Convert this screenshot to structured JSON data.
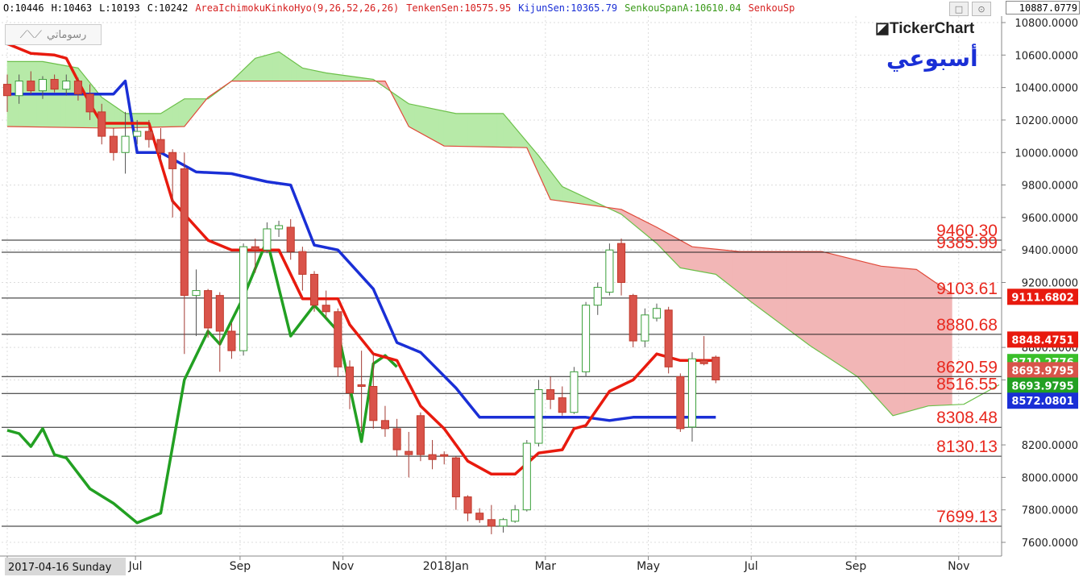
{
  "header": {
    "ohlc": [
      {
        "text": "O:10446",
        "color": "#000000"
      },
      {
        "text": "H:10463",
        "color": "#000000"
      },
      {
        "text": "L:10193",
        "color": "#000000"
      },
      {
        "text": "C:10242",
        "color": "#000000"
      },
      {
        "text": "AreaIchimokuKinkoHyo(9,26,52,26,26)",
        "color": "#d62020"
      },
      {
        "text": "TenkenSen:10575.95",
        "color": "#d62020"
      },
      {
        "text": "KijunSen:10365.79",
        "color": "#1a2fd6"
      },
      {
        "text": "SenkouSpanA:10610.04",
        "color": "#3a9a1a"
      },
      {
        "text": "SenkouSp",
        "color": "#d62020"
      }
    ],
    "last_price": "10887.0779",
    "window_buttons": [
      "□",
      "⊙"
    ]
  },
  "toolbar": {
    "drawings_label": "رسوماتي",
    "drawings_icon": "trend-line-icon"
  },
  "branding": {
    "logo_text": "◪TickerChart",
    "period_label": "أسبوعي"
  },
  "colors": {
    "up_candle": "#ffffff",
    "down_candle": "#d9534a",
    "tenkan": "#e81a0e",
    "kijun": "#1a2fd6",
    "chikou": "#22a022",
    "cloud_bull": "#b7eaa8",
    "cloud_bear": "#f2b6b6",
    "span_a": "#6cc04a",
    "span_b": "#e04a3a"
  },
  "chart_data": {
    "type": "candlestick",
    "title": "",
    "ylim": [
      7550,
      10850
    ],
    "x_range": [
      "2017-04-16",
      "2018-11-25"
    ],
    "x_ticks": [
      {
        "label": "2017-04-16 Sunday",
        "date": "2017-04-16"
      },
      {
        "label": "Jul",
        "date": "2017-07-01"
      },
      {
        "label": "Sep",
        "date": "2017-09-01"
      },
      {
        "label": "Nov",
        "date": "2017-11-01"
      },
      {
        "label": "2018Jan",
        "date": "2018-01-01"
      },
      {
        "label": "Mar",
        "date": "2018-03-01"
      },
      {
        "label": "May",
        "date": "2018-05-01"
      },
      {
        "label": "Jul",
        "date": "2018-07-01"
      },
      {
        "label": "Sep",
        "date": "2018-09-01"
      },
      {
        "label": "Nov",
        "date": "2018-11-01"
      }
    ],
    "y_ticks": [
      "10800.0000",
      "10600.0000",
      "10400.0000",
      "10200.0000",
      "10000.0000",
      "9800.0000",
      "9600.0000",
      "9400.0000",
      "9200.0000",
      "8800.0000",
      "8600.0000",
      "8200.0000",
      "8000.0000",
      "7800.0000",
      "7600.0000"
    ],
    "candles": [
      {
        "date": "2017-04-16",
        "o": 10420,
        "h": 10480,
        "l": 10250,
        "c": 10350
      },
      {
        "date": "2017-04-23",
        "o": 10350,
        "h": 10480,
        "l": 10300,
        "c": 10440
      },
      {
        "date": "2017-04-30",
        "o": 10440,
        "h": 10500,
        "l": 10360,
        "c": 10380
      },
      {
        "date": "2017-05-07",
        "o": 10380,
        "h": 10470,
        "l": 10330,
        "c": 10450
      },
      {
        "date": "2017-05-14",
        "o": 10450,
        "h": 10480,
        "l": 10370,
        "c": 10390
      },
      {
        "date": "2017-05-21",
        "o": 10390,
        "h": 10480,
        "l": 10350,
        "c": 10440
      },
      {
        "date": "2017-05-28",
        "o": 10440,
        "h": 10460,
        "l": 10320,
        "c": 10360
      },
      {
        "date": "2017-06-04",
        "o": 10360,
        "h": 10420,
        "l": 10200,
        "c": 10250
      },
      {
        "date": "2017-06-11",
        "o": 10250,
        "h": 10300,
        "l": 10050,
        "c": 10100
      },
      {
        "date": "2017-06-18",
        "o": 10100,
        "h": 10150,
        "l": 9950,
        "c": 10000
      },
      {
        "date": "2017-06-25",
        "o": 10000,
        "h": 10250,
        "l": 9870,
        "c": 10100
      },
      {
        "date": "2017-07-02",
        "o": 10100,
        "h": 10200,
        "l": 10050,
        "c": 10130
      },
      {
        "date": "2017-07-09",
        "o": 10130,
        "h": 10200,
        "l": 10030,
        "c": 10080
      },
      {
        "date": "2017-07-16",
        "o": 10080,
        "h": 10150,
        "l": 9950,
        "c": 10000
      },
      {
        "date": "2017-07-23",
        "o": 10000,
        "h": 10020,
        "l": 9600,
        "c": 9900
      },
      {
        "date": "2017-07-30",
        "o": 9900,
        "h": 10000,
        "l": 8760,
        "c": 9120
      },
      {
        "date": "2017-08-06",
        "o": 9120,
        "h": 9280,
        "l": 8870,
        "c": 9150
      },
      {
        "date": "2017-08-13",
        "o": 9150,
        "h": 9160,
        "l": 8860,
        "c": 8920
      },
      {
        "date": "2017-08-20",
        "o": 9120,
        "h": 9140,
        "l": 8650,
        "c": 8900
      },
      {
        "date": "2017-08-27",
        "o": 8900,
        "h": 8950,
        "l": 8730,
        "c": 8780
      },
      {
        "date": "2017-09-03",
        "o": 8780,
        "h": 9440,
        "l": 8750,
        "c": 9420
      },
      {
        "date": "2017-09-10",
        "o": 9420,
        "h": 9470,
        "l": 9260,
        "c": 9400
      },
      {
        "date": "2017-09-17",
        "o": 9400,
        "h": 9570,
        "l": 9380,
        "c": 9530
      },
      {
        "date": "2017-09-24",
        "o": 9530,
        "h": 9580,
        "l": 9480,
        "c": 9550
      },
      {
        "date": "2017-10-01",
        "o": 9540,
        "h": 9590,
        "l": 9340,
        "c": 9390
      },
      {
        "date": "2017-10-08",
        "o": 9390,
        "h": 9420,
        "l": 9150,
        "c": 9250
      },
      {
        "date": "2017-10-15",
        "o": 9250,
        "h": 9270,
        "l": 9020,
        "c": 9060
      },
      {
        "date": "2017-10-22",
        "o": 9060,
        "h": 9150,
        "l": 8980,
        "c": 9020
      },
      {
        "date": "2017-10-29",
        "o": 9020,
        "h": 9040,
        "l": 8620,
        "c": 8680
      },
      {
        "date": "2017-11-05",
        "o": 8680,
        "h": 8720,
        "l": 8420,
        "c": 8520
      },
      {
        "date": "2017-11-12",
        "o": 8570,
        "h": 8780,
        "l": 8280,
        "c": 8560
      },
      {
        "date": "2017-11-19",
        "o": 8560,
        "h": 8760,
        "l": 8300,
        "c": 8350
      },
      {
        "date": "2017-11-26",
        "o": 8350,
        "h": 8440,
        "l": 8250,
        "c": 8300
      },
      {
        "date": "2017-12-03",
        "o": 8300,
        "h": 8360,
        "l": 8130,
        "c": 8170
      },
      {
        "date": "2017-12-10",
        "o": 8160,
        "h": 8280,
        "l": 8000,
        "c": 8140
      },
      {
        "date": "2017-12-17",
        "o": 8380,
        "h": 8400,
        "l": 8100,
        "c": 8140
      },
      {
        "date": "2017-12-24",
        "o": 8140,
        "h": 8230,
        "l": 8050,
        "c": 8110
      },
      {
        "date": "2017-12-31",
        "o": 8140,
        "h": 8160,
        "l": 8080,
        "c": 8130
      },
      {
        "date": "2018-01-07",
        "o": 8120,
        "h": 8130,
        "l": 7800,
        "c": 7880
      },
      {
        "date": "2018-01-14",
        "o": 7880,
        "h": 7890,
        "l": 7730,
        "c": 7780
      },
      {
        "date": "2018-01-21",
        "o": 7780,
        "h": 7810,
        "l": 7720,
        "c": 7740
      },
      {
        "date": "2018-01-28",
        "o": 7740,
        "h": 7830,
        "l": 7650,
        "c": 7700
      },
      {
        "date": "2018-02-04",
        "o": 7700,
        "h": 7750,
        "l": 7660,
        "c": 7740
      },
      {
        "date": "2018-02-11",
        "o": 7730,
        "h": 7830,
        "l": 7720,
        "c": 7800
      },
      {
        "date": "2018-02-18",
        "o": 7800,
        "h": 8230,
        "l": 7790,
        "c": 8210
      },
      {
        "date": "2018-02-25",
        "o": 8210,
        "h": 8600,
        "l": 8190,
        "c": 8540
      },
      {
        "date": "2018-03-04",
        "o": 8540,
        "h": 8620,
        "l": 8420,
        "c": 8480
      },
      {
        "date": "2018-03-11",
        "o": 8490,
        "h": 8560,
        "l": 8380,
        "c": 8400
      },
      {
        "date": "2018-03-18",
        "o": 8400,
        "h": 8680,
        "l": 8390,
        "c": 8650
      },
      {
        "date": "2018-03-25",
        "o": 8650,
        "h": 9080,
        "l": 8620,
        "c": 9060
      },
      {
        "date": "2018-04-01",
        "o": 9060,
        "h": 9200,
        "l": 9000,
        "c": 9170
      },
      {
        "date": "2018-04-08",
        "o": 9140,
        "h": 9440,
        "l": 9120,
        "c": 9400
      },
      {
        "date": "2018-04-15",
        "o": 9440,
        "h": 9470,
        "l": 9120,
        "c": 9200
      },
      {
        "date": "2018-04-22",
        "o": 9120,
        "h": 9130,
        "l": 8800,
        "c": 8840
      },
      {
        "date": "2018-04-29",
        "o": 8840,
        "h": 9040,
        "l": 8800,
        "c": 9000
      },
      {
        "date": "2018-05-06",
        "o": 8980,
        "h": 9070,
        "l": 8960,
        "c": 9040
      },
      {
        "date": "2018-05-13",
        "o": 9030,
        "h": 9050,
        "l": 8640,
        "c": 8680
      },
      {
        "date": "2018-05-20",
        "o": 8620,
        "h": 8640,
        "l": 8280,
        "c": 8300
      },
      {
        "date": "2018-05-27",
        "o": 8310,
        "h": 8770,
        "l": 8220,
        "c": 8730
      },
      {
        "date": "2018-06-03",
        "o": 8720,
        "h": 8870,
        "l": 8690,
        "c": 8700
      },
      {
        "date": "2018-06-10",
        "o": 8740,
        "h": 8750,
        "l": 8580,
        "c": 8600
      }
    ],
    "tenkan_sen": {
      "name": "TenkenSen",
      "points": [
        [
          "2017-04-16",
          10670
        ],
        [
          "2017-04-30",
          10610
        ],
        [
          "2017-05-14",
          10600
        ],
        [
          "2017-05-21",
          10580
        ],
        [
          "2017-06-04",
          10300
        ],
        [
          "2017-06-11",
          10180
        ],
        [
          "2017-06-25",
          10180
        ],
        [
          "2017-07-09",
          10180
        ],
        [
          "2017-07-23",
          9700
        ],
        [
          "2017-08-13",
          9460
        ],
        [
          "2017-08-27",
          9400
        ],
        [
          "2017-09-24",
          9400
        ],
        [
          "2017-10-08",
          9100
        ],
        [
          "2017-10-29",
          9100
        ],
        [
          "2017-11-05",
          8940
        ],
        [
          "2017-11-19",
          8760
        ],
        [
          "2017-12-03",
          8720
        ],
        [
          "2017-12-17",
          8440
        ],
        [
          "2017-12-31",
          8300
        ],
        [
          "2018-01-14",
          8100
        ],
        [
          "2018-01-28",
          8020
        ],
        [
          "2018-02-11",
          8020
        ],
        [
          "2018-02-25",
          8150
        ],
        [
          "2018-03-11",
          8170
        ],
        [
          "2018-03-18",
          8300
        ],
        [
          "2018-03-25",
          8320
        ],
        [
          "2018-04-08",
          8530
        ],
        [
          "2018-04-22",
          8600
        ],
        [
          "2018-05-06",
          8760
        ],
        [
          "2018-05-20",
          8720
        ],
        [
          "2018-06-10",
          8720
        ]
      ]
    },
    "kijun_sen": {
      "name": "KijunSen",
      "points": [
        [
          "2017-04-16",
          10360
        ],
        [
          "2017-06-11",
          10360
        ],
        [
          "2017-06-18",
          10360
        ],
        [
          "2017-06-25",
          10440
        ],
        [
          "2017-07-02",
          10000
        ],
        [
          "2017-07-16",
          10000
        ],
        [
          "2017-08-06",
          9880
        ],
        [
          "2017-08-27",
          9870
        ],
        [
          "2017-09-17",
          9820
        ],
        [
          "2017-10-01",
          9800
        ],
        [
          "2017-10-15",
          9430
        ],
        [
          "2017-10-29",
          9400
        ],
        [
          "2017-11-19",
          9160
        ],
        [
          "2017-12-03",
          8830
        ],
        [
          "2017-12-17",
          8770
        ],
        [
          "2018-01-07",
          8550
        ],
        [
          "2018-01-21",
          8370
        ],
        [
          "2018-01-28",
          8370
        ],
        [
          "2018-02-25",
          8370
        ],
        [
          "2018-03-25",
          8370
        ],
        [
          "2018-04-08",
          8350
        ],
        [
          "2018-04-22",
          8370
        ],
        [
          "2018-06-10",
          8370
        ]
      ]
    },
    "chikou_span": {
      "name": "ChikouSpan",
      "points": [
        [
          "2017-04-16",
          8290
        ],
        [
          "2017-04-23",
          8270
        ],
        [
          "2017-04-30",
          8190
        ],
        [
          "2017-05-07",
          8300
        ],
        [
          "2017-05-14",
          8140
        ],
        [
          "2017-05-21",
          8120
        ],
        [
          "2017-06-04",
          7930
        ],
        [
          "2017-06-18",
          7840
        ],
        [
          "2017-07-02",
          7720
        ],
        [
          "2017-07-16",
          7780
        ],
        [
          "2017-07-30",
          8600
        ],
        [
          "2017-08-13",
          8900
        ],
        [
          "2017-08-20",
          8820
        ],
        [
          "2017-09-03",
          9110
        ],
        [
          "2017-09-17",
          9460
        ],
        [
          "2017-10-01",
          8870
        ],
        [
          "2017-10-15",
          9060
        ],
        [
          "2017-10-29",
          8900
        ],
        [
          "2017-11-12",
          8220
        ],
        [
          "2017-11-19",
          8700
        ],
        [
          "2017-11-26",
          8750
        ],
        [
          "2017-12-03",
          8680
        ]
      ]
    },
    "senkou_span_a": {
      "name": "SenkouSpanA",
      "points": [
        [
          "2017-04-16",
          10560
        ],
        [
          "2017-05-07",
          10560
        ],
        [
          "2017-05-28",
          10520
        ],
        [
          "2017-06-11",
          10340
        ],
        [
          "2017-06-25",
          10240
        ],
        [
          "2017-07-16",
          10240
        ],
        [
          "2017-07-30",
          10330
        ],
        [
          "2017-08-13",
          10330
        ],
        [
          "2017-08-27",
          10440
        ],
        [
          "2017-09-10",
          10580
        ],
        [
          "2017-09-24",
          10620
        ],
        [
          "2017-10-08",
          10520
        ],
        [
          "2017-10-22",
          10490
        ],
        [
          "2017-11-19",
          10450
        ],
        [
          "2017-12-10",
          10300
        ],
        [
          "2018-01-07",
          10240
        ],
        [
          "2018-02-04",
          10240
        ],
        [
          "2018-02-25",
          9980
        ],
        [
          "2018-03-11",
          9790
        ],
        [
          "2018-04-15",
          9620
        ],
        [
          "2018-05-06",
          9440
        ],
        [
          "2018-05-20",
          9290
        ],
        [
          "2018-06-10",
          9250
        ],
        [
          "2018-07-01",
          9080
        ],
        [
          "2018-08-05",
          8810
        ],
        [
          "2018-09-02",
          8620
        ],
        [
          "2018-09-23",
          8380
        ],
        [
          "2018-10-14",
          8440
        ],
        [
          "2018-11-04",
          8450
        ],
        [
          "2018-11-25",
          8570
        ]
      ]
    },
    "senkou_span_b": {
      "name": "SenkouSpanB",
      "points": [
        [
          "2017-04-16",
          10160
        ],
        [
          "2017-06-18",
          10150
        ],
        [
          "2017-07-30",
          10160
        ],
        [
          "2017-08-13",
          10340
        ],
        [
          "2017-08-27",
          10440
        ],
        [
          "2017-11-26",
          10440
        ],
        [
          "2017-12-10",
          10160
        ],
        [
          "2017-12-31",
          10040
        ],
        [
          "2018-02-18",
          10030
        ],
        [
          "2018-03-04",
          9710
        ],
        [
          "2018-04-15",
          9650
        ],
        [
          "2018-05-06",
          9540
        ],
        [
          "2018-05-27",
          9420
        ],
        [
          "2018-06-24",
          9390
        ],
        [
          "2018-08-12",
          9390
        ],
        [
          "2018-09-16",
          9300
        ],
        [
          "2018-10-07",
          9280
        ],
        [
          "2018-10-28",
          9130
        ]
      ]
    },
    "horizontal_levels": [
      9460.3,
      9385.99,
      9103.61,
      8880.68,
      8620.59,
      8516.55,
      8308.48,
      8130.13,
      7699.13
    ],
    "price_tags": [
      {
        "label": "9111.6802",
        "value": 9111.6802,
        "color": "#e81a0e"
      },
      {
        "label": "8848.4751",
        "value": 8848.4751,
        "color": "#e81a0e"
      },
      {
        "label": "8710.2776",
        "value": 8710.2776,
        "color": "#3abf2a"
      },
      {
        "label": "8693.9795",
        "value": 8693.9795,
        "color": "#d9534a"
      },
      {
        "label": "8693.9795",
        "value": 8693.9795,
        "color": "#22a022"
      },
      {
        "label": "8572.0801",
        "value": 8572.0801,
        "color": "#1a2fd6"
      }
    ]
  }
}
